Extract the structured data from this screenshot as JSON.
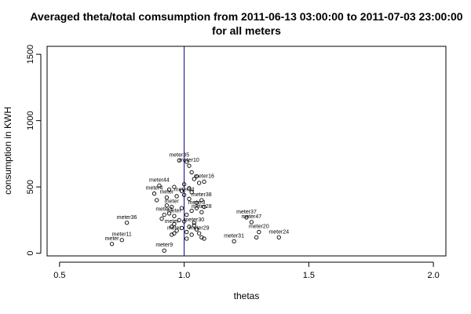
{
  "chart_data": {
    "type": "scatter",
    "title_line1": "Averaged theta/total comsumption from 2011-06-13 03:00:00 to 2011-07-03 23:00:00",
    "title_line2": "for all meters",
    "xlabel": "thetas",
    "ylabel": "consumption in KWH",
    "xlim": [
      0.45,
      2.05
    ],
    "ylim": [
      -20,
      1560
    ],
    "xticks": [
      {
        "value": 0.5,
        "label": "0.5"
      },
      {
        "value": 1.0,
        "label": "1.0"
      },
      {
        "value": 1.5,
        "label": "1.5"
      },
      {
        "value": 2.0,
        "label": "2.0"
      }
    ],
    "yticks": [
      {
        "value": 0,
        "label": "0"
      },
      {
        "value": 500,
        "label": "500"
      },
      {
        "value": 1000,
        "label": "1000"
      },
      {
        "value": 1500,
        "label": "1500"
      }
    ],
    "vline": 1.0,
    "vline_color": "#000080",
    "points": [
      {
        "label": "meter35",
        "x": 0.98,
        "y": 700
      },
      {
        "label": "meter10",
        "x": 1.02,
        "y": 660
      },
      {
        "label": "meter16",
        "x": 1.08,
        "y": 540
      },
      {
        "label": "meter44",
        "x": 0.9,
        "y": 510
      },
      {
        "label": "meter4",
        "x": 0.88,
        "y": 450
      },
      {
        "label": "meter",
        "x": 0.93,
        "y": 420
      },
      {
        "label": "meter34",
        "x": 1.0,
        "y": 440
      },
      {
        "label": "meter38",
        "x": 1.07,
        "y": 400
      },
      {
        "label": "meter",
        "x": 0.95,
        "y": 350
      },
      {
        "label": "meter3",
        "x": 1.05,
        "y": 340
      },
      {
        "label": "meter28",
        "x": 1.07,
        "y": 310
      },
      {
        "label": "meter1",
        "x": 0.92,
        "y": 290
      },
      {
        "label": "meter",
        "x": 0.96,
        "y": 280
      },
      {
        "label": "meter36",
        "x": 0.77,
        "y": 230
      },
      {
        "label": "meter37",
        "x": 1.25,
        "y": 270
      },
      {
        "label": "meter47",
        "x": 1.27,
        "y": 235
      },
      {
        "label": "meter30",
        "x": 1.04,
        "y": 210
      },
      {
        "label": "meter",
        "x": 0.95,
        "y": 200
      },
      {
        "label": "meter20",
        "x": 1.3,
        "y": 160
      },
      {
        "label": "meter29",
        "x": 1.06,
        "y": 150
      },
      {
        "label": "meter",
        "x": 0.96,
        "y": 150
      },
      {
        "label": "meter24",
        "x": 1.38,
        "y": 120
      },
      {
        "label": "meter31",
        "x": 1.2,
        "y": 90
      },
      {
        "label": "meter11",
        "x": 0.75,
        "y": 100
      },
      {
        "label": "meter",
        "x": 0.71,
        "y": 70
      },
      {
        "label": "meter9",
        "x": 0.92,
        "y": 20
      }
    ],
    "extra_points": [
      {
        "x": 1.01,
        "y": 690
      },
      {
        "x": 1.03,
        "y": 610
      },
      {
        "x": 1.05,
        "y": 580
      },
      {
        "x": 1.04,
        "y": 560
      },
      {
        "x": 1.06,
        "y": 530
      },
      {
        "x": 0.96,
        "y": 500
      },
      {
        "x": 1.0,
        "y": 520
      },
      {
        "x": 1.02,
        "y": 490
      },
      {
        "x": 0.94,
        "y": 480
      },
      {
        "x": 0.99,
        "y": 470
      },
      {
        "x": 1.03,
        "y": 460
      },
      {
        "x": 0.89,
        "y": 400
      },
      {
        "x": 0.97,
        "y": 430
      },
      {
        "x": 1.02,
        "y": 410
      },
      {
        "x": 1.05,
        "y": 380
      },
      {
        "x": 0.93,
        "y": 360
      },
      {
        "x": 0.99,
        "y": 340
      },
      {
        "x": 1.03,
        "y": 320
      },
      {
        "x": 0.94,
        "y": 300
      },
      {
        "x": 1.01,
        "y": 290
      },
      {
        "x": 1.08,
        "y": 350
      },
      {
        "x": 0.91,
        "y": 260
      },
      {
        "x": 0.98,
        "y": 250
      },
      {
        "x": 1.0,
        "y": 240
      },
      {
        "x": 1.04,
        "y": 230
      },
      {
        "x": 0.96,
        "y": 220
      },
      {
        "x": 1.02,
        "y": 200
      },
      {
        "x": 0.99,
        "y": 190
      },
      {
        "x": 1.05,
        "y": 180
      },
      {
        "x": 0.97,
        "y": 170
      },
      {
        "x": 1.01,
        "y": 160
      },
      {
        "x": 0.95,
        "y": 140
      },
      {
        "x": 1.03,
        "y": 140
      },
      {
        "x": 1.07,
        "y": 120
      },
      {
        "x": 1.01,
        "y": 110
      },
      {
        "x": 1.08,
        "y": 110
      },
      {
        "x": 1.29,
        "y": 120
      }
    ]
  }
}
